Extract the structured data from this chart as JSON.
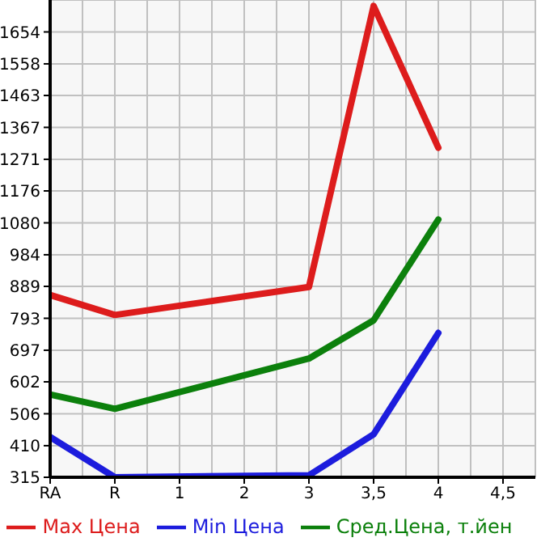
{
  "chart_data": {
    "type": "line",
    "categories": [
      "RA",
      "R",
      "1",
      "2",
      "3",
      "3,5",
      "4",
      "4,5"
    ],
    "series": [
      {
        "name": "Max Цена",
        "color": "#dd1c1c",
        "values": [
          863,
          803,
          null,
          null,
          887,
          1732,
          1306,
          null
        ]
      },
      {
        "name": "Min Цена",
        "color": "#1c1cdd",
        "values": [
          436,
          315,
          null,
          null,
          321,
          444,
          749,
          null
        ]
      },
      {
        "name": "Сред.Цена, т.йен",
        "color": "#0c800c",
        "values": [
          564,
          521,
          null,
          null,
          672,
          787,
          1090,
          null
        ]
      }
    ],
    "ylim": [
      315,
      1750
    ],
    "yticks": [
      315,
      410,
      506,
      602,
      697,
      793,
      889,
      984,
      1080,
      1176,
      1271,
      1367,
      1463,
      1558,
      1654
    ],
    "grid": true,
    "legend": "bottom",
    "marker": "none",
    "line_style": "solid"
  }
}
